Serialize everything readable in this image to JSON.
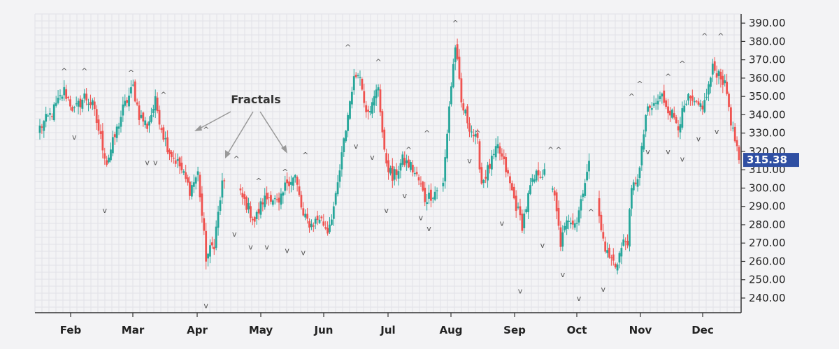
{
  "chart_data": {
    "type": "candlestick",
    "title": "",
    "xlabel": "",
    "ylabel": "",
    "ylim": [
      232,
      395
    ],
    "y_ticks": [
      "240.00",
      "250.00",
      "260.00",
      "270.00",
      "280.00",
      "290.00",
      "300.00",
      "310.00",
      "320.00",
      "330.00",
      "340.00",
      "350.00",
      "360.00",
      "370.00",
      "380.00",
      "390.00"
    ],
    "months": [
      "Feb",
      "Mar",
      "Apr",
      "May",
      "Jun",
      "Jul",
      "Aug",
      "Sep",
      "Oct",
      "Nov",
      "Dec"
    ],
    "last_price": "315.38",
    "annotation": "Fractals",
    "grid": true,
    "colors": {
      "up": "#26a69a",
      "down": "#ef5350",
      "price_tag": "#2f4fa3",
      "axis": "#333333",
      "grid": "#e0e0e6",
      "annotation": "#999999"
    },
    "close_path": [
      [
        0,
        333
      ],
      [
        6,
        341
      ],
      [
        12,
        353
      ],
      [
        17,
        342
      ],
      [
        22,
        350
      ],
      [
        26,
        345
      ],
      [
        33,
        314
      ],
      [
        37,
        328
      ],
      [
        41,
        343
      ],
      [
        46,
        355
      ],
      [
        49,
        340
      ],
      [
        53,
        334
      ],
      [
        57,
        347
      ],
      [
        61,
        329
      ],
      [
        64,
        320
      ],
      [
        69,
        312
      ],
      [
        74,
        299
      ],
      [
        78,
        308
      ],
      [
        82,
        262
      ],
      [
        86,
        270
      ],
      [
        90,
        302
      ],
      [
        94,
        305
      ],
      [
        98,
        298
      ],
      [
        102,
        291
      ],
      [
        106,
        282
      ],
      [
        110,
        293
      ],
      [
        114,
        296
      ],
      [
        118,
        290
      ],
      [
        122,
        304
      ],
      [
        126,
        306
      ],
      [
        130,
        284
      ],
      [
        134,
        280
      ],
      [
        138,
        284
      ],
      [
        142,
        277
      ],
      [
        146,
        294
      ],
      [
        150,
        325
      ],
      [
        154,
        355
      ],
      [
        157,
        365
      ],
      [
        161,
        344
      ],
      [
        164,
        345
      ],
      [
        167,
        356
      ],
      [
        170,
        318
      ],
      [
        174,
        305
      ],
      [
        179,
        315
      ],
      [
        183,
        312
      ],
      [
        187,
        304
      ],
      [
        190,
        294
      ],
      [
        195,
        298
      ],
      [
        199,
        302
      ],
      [
        202,
        345
      ],
      [
        205,
        378
      ],
      [
        208,
        346
      ],
      [
        212,
        334
      ],
      [
        216,
        324
      ],
      [
        218,
        303
      ],
      [
        222,
        312
      ],
      [
        226,
        322
      ],
      [
        230,
        310
      ],
      [
        234,
        294
      ],
      [
        238,
        280
      ],
      [
        242,
        300
      ],
      [
        246,
        309
      ],
      [
        250,
        307
      ],
      [
        254,
        294
      ],
      [
        257,
        270
      ],
      [
        261,
        284
      ],
      [
        265,
        282
      ],
      [
        268,
        300
      ],
      [
        271,
        312
      ],
      [
        274,
        302
      ],
      [
        277,
        276
      ],
      [
        280,
        264
      ],
      [
        284,
        258
      ],
      [
        288,
        270
      ],
      [
        290,
        272
      ],
      [
        292,
        298
      ],
      [
        296,
        310
      ],
      [
        299,
        340
      ],
      [
        303,
        345
      ],
      [
        307,
        350
      ],
      [
        311,
        342
      ],
      [
        315,
        335
      ],
      [
        320,
        348
      ],
      [
        324,
        344
      ],
      [
        328,
        346
      ],
      [
        332,
        365
      ],
      [
        336,
        362
      ],
      [
        339,
        352
      ],
      [
        342,
        330
      ],
      [
        345,
        318
      ]
    ],
    "fractals_up": [
      [
        12,
        364
      ],
      [
        22,
        364
      ],
      [
        45,
        363
      ],
      [
        61,
        351
      ],
      [
        82,
        332
      ],
      [
        97,
        316
      ],
      [
        108,
        304
      ],
      [
        121,
        309
      ],
      [
        131,
        318
      ],
      [
        152,
        377
      ],
      [
        167,
        369
      ],
      [
        182,
        321
      ],
      [
        191,
        330
      ],
      [
        205,
        390
      ],
      [
        216,
        330
      ],
      [
        252,
        321
      ],
      [
        256,
        321
      ],
      [
        272,
        287
      ],
      [
        292,
        350
      ],
      [
        296,
        357
      ],
      [
        310,
        361
      ],
      [
        317,
        368
      ],
      [
        328,
        383
      ],
      [
        336,
        383
      ]
    ],
    "fractals_down": [
      [
        17,
        328
      ],
      [
        32,
        288
      ],
      [
        53,
        314
      ],
      [
        57,
        314
      ],
      [
        82,
        236
      ],
      [
        96,
        275
      ],
      [
        104,
        268
      ],
      [
        112,
        268
      ],
      [
        122,
        266
      ],
      [
        130,
        265
      ],
      [
        156,
        323
      ],
      [
        164,
        317
      ],
      [
        171,
        288
      ],
      [
        180,
        296
      ],
      [
        188,
        284
      ],
      [
        192,
        278
      ],
      [
        212,
        315
      ],
      [
        228,
        281
      ],
      [
        237,
        244
      ],
      [
        248,
        269
      ],
      [
        258,
        253
      ],
      [
        266,
        240
      ],
      [
        278,
        245
      ],
      [
        300,
        320
      ],
      [
        310,
        320
      ],
      [
        317,
        316
      ],
      [
        325,
        327
      ],
      [
        334,
        331
      ]
    ]
  }
}
